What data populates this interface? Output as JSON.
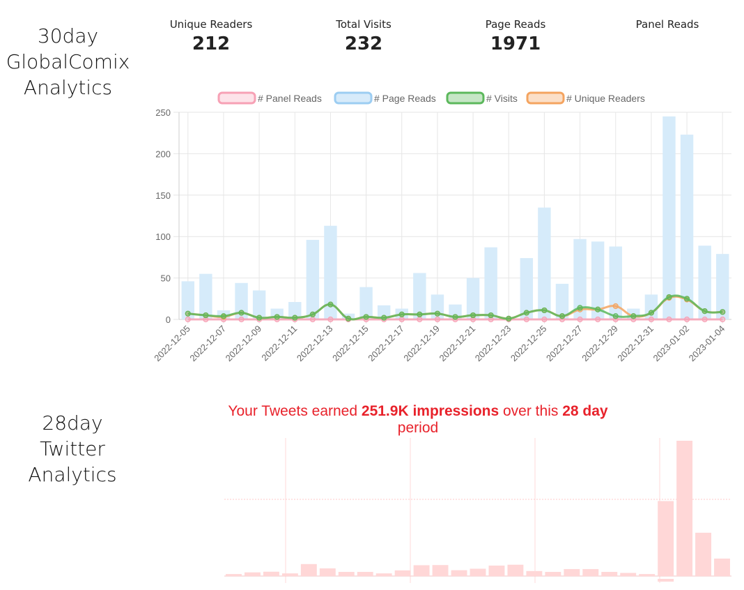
{
  "sections": {
    "globalcomix_label": [
      "30day",
      "GlobalComix",
      "Analytics"
    ],
    "twitter_label": [
      "28day",
      "Twitter",
      "Analytics"
    ]
  },
  "stats": [
    {
      "label": "Unique Readers",
      "value": "212"
    },
    {
      "label": "Total Visits",
      "value": "232"
    },
    {
      "label": "Page Reads",
      "value": "1971"
    },
    {
      "label": "Panel Reads",
      "value": ""
    }
  ],
  "twitter": {
    "headline_parts": [
      "Your Tweets earned ",
      "251.9K impressions",
      " over this ",
      "28 day",
      " period"
    ]
  },
  "chart_data": [
    {
      "type": "bar",
      "title": "",
      "legend_position": "top",
      "grid": true,
      "ylim": [
        0,
        250
      ],
      "yticks": [
        "0",
        "50",
        "100",
        "150",
        "200",
        "250"
      ],
      "xtick_labels": [
        "2022-12-05",
        "2022-12-07",
        "2022-12-09",
        "2022-12-11",
        "2022-12-13",
        "2022-12-15",
        "2022-12-17",
        "2022-12-19",
        "2022-12-21",
        "2022-12-23",
        "2022-12-25",
        "2022-12-27",
        "2022-12-29",
        "2022-12-31",
        "2023-01-02",
        "2023-01-04"
      ],
      "x": [
        "2022-12-05",
        "2022-12-06",
        "2022-12-07",
        "2022-12-08",
        "2022-12-09",
        "2022-12-10",
        "2022-12-11",
        "2022-12-12",
        "2022-12-13",
        "2022-12-14",
        "2022-12-15",
        "2022-12-16",
        "2022-12-17",
        "2022-12-18",
        "2022-12-19",
        "2022-12-20",
        "2022-12-21",
        "2022-12-22",
        "2022-12-23",
        "2022-12-24",
        "2022-12-25",
        "2022-12-26",
        "2022-12-27",
        "2022-12-28",
        "2022-12-29",
        "2022-12-30",
        "2022-12-31",
        "2023-01-01",
        "2023-01-02",
        "2023-01-03",
        "2023-01-04"
      ],
      "series": [
        {
          "name": "# Panel Reads",
          "kind": "line",
          "color": "#f7a1b5",
          "values": [
            0,
            0,
            0,
            0,
            0,
            0,
            0,
            0,
            0,
            0,
            0,
            0,
            0,
            0,
            0,
            0,
            0,
            0,
            0,
            0,
            0,
            0,
            0,
            0,
            0,
            0,
            0,
            0,
            0,
            0,
            0
          ]
        },
        {
          "name": "# Page Reads",
          "kind": "bar",
          "color": "#d6ebfa",
          "values": [
            46,
            55,
            11,
            44,
            35,
            13,
            21,
            96,
            113,
            7,
            39,
            17,
            13,
            56,
            30,
            18,
            50,
            87,
            1,
            74,
            135,
            43,
            97,
            94,
            88,
            13,
            30,
            245,
            223,
            89,
            79
          ]
        },
        {
          "name": "# Visits",
          "kind": "line",
          "color": "#5cb85c",
          "values": [
            7,
            5,
            4,
            8,
            2,
            3,
            2,
            6,
            18,
            1,
            3,
            2,
            6,
            6,
            7,
            3,
            5,
            5,
            1,
            8,
            11,
            4,
            14,
            12,
            4,
            4,
            8,
            27,
            25,
            10,
            9
          ]
        },
        {
          "name": "# Unique Readers",
          "kind": "line",
          "color": "#f4a460",
          "values": [
            7,
            5,
            3,
            8,
            2,
            3,
            2,
            6,
            18,
            1,
            3,
            2,
            6,
            6,
            7,
            3,
            5,
            5,
            1,
            8,
            11,
            4,
            12,
            12,
            16,
            4,
            8,
            26,
            24,
            10,
            9
          ]
        }
      ]
    },
    {
      "type": "bar",
      "title": "",
      "color": "#ffd7d7",
      "values": [
        1.2,
        2.2,
        2.6,
        1.6,
        7.2,
        4.6,
        2.5,
        2.5,
        1.6,
        3.4,
        6.5,
        6.6,
        3.5,
        4.4,
        6.3,
        6.8,
        3.0,
        2.5,
        4.2,
        4.2,
        2.5,
        1.9,
        1.2,
        45,
        81.2,
        26,
        10.5
      ]
    }
  ]
}
